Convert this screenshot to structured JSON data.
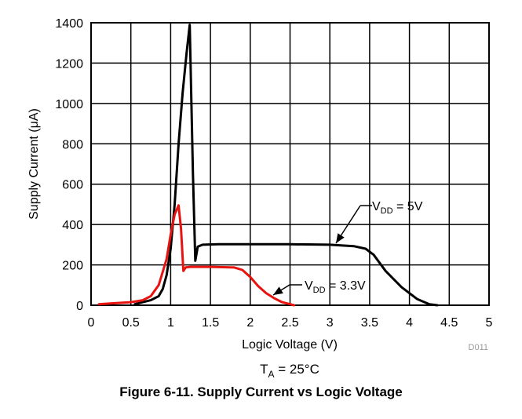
{
  "chart_data": {
    "type": "line",
    "xlabel": "Logic Voltage (V)",
    "ylabel": "Supply Current (μA)",
    "xlim": [
      0,
      5
    ],
    "ylim": [
      0,
      1400
    ],
    "xticks": [
      "0",
      "0.5",
      "1",
      "1.5",
      "2",
      "2.5",
      "3",
      "3.5",
      "4",
      "4.5",
      "5"
    ],
    "yticks": [
      "0",
      "200",
      "400",
      "600",
      "800",
      "1000",
      "1200",
      "1400"
    ],
    "grid": true,
    "code": "D011",
    "condition": {
      "main": "T",
      "sub": "A",
      "rest": " = 25°C"
    },
    "series": [
      {
        "label": {
          "main": "V",
          "sub": "DD",
          "rest": " = 5V"
        },
        "color": "#000000",
        "x": [
          0.55,
          0.65,
          0.75,
          0.85,
          0.9,
          0.95,
          1.0,
          1.05,
          1.1,
          1.15,
          1.2,
          1.24,
          1.28,
          1.31,
          1.34,
          1.4,
          1.6,
          2.0,
          2.5,
          3.0,
          3.3,
          3.45,
          3.55,
          3.7,
          3.9,
          4.1,
          4.25,
          4.35
        ],
        "y": [
          5,
          15,
          25,
          45,
          80,
          150,
          280,
          500,
          800,
          1050,
          1250,
          1390,
          650,
          220,
          290,
          300,
          302,
          302,
          302,
          300,
          293,
          280,
          250,
          170,
          90,
          30,
          5,
          0
        ]
      },
      {
        "label": {
          "main": "V",
          "sub": "DD",
          "rest": " = 3.3V"
        },
        "color": "#e8130f",
        "x": [
          0.1,
          0.3,
          0.5,
          0.65,
          0.75,
          0.85,
          0.95,
          1.0,
          1.05,
          1.1,
          1.13,
          1.16,
          1.19,
          1.25,
          1.5,
          1.8,
          1.9,
          2.0,
          2.1,
          2.2,
          2.3,
          2.4,
          2.5,
          2.55
        ],
        "y": [
          5,
          10,
          15,
          25,
          45,
          100,
          230,
          350,
          450,
          495,
          380,
          170,
          188,
          190,
          190,
          187,
          175,
          140,
          95,
          60,
          35,
          15,
          5,
          0
        ]
      }
    ],
    "title": "Figure 6-11. Supply Current vs Logic Voltage"
  }
}
